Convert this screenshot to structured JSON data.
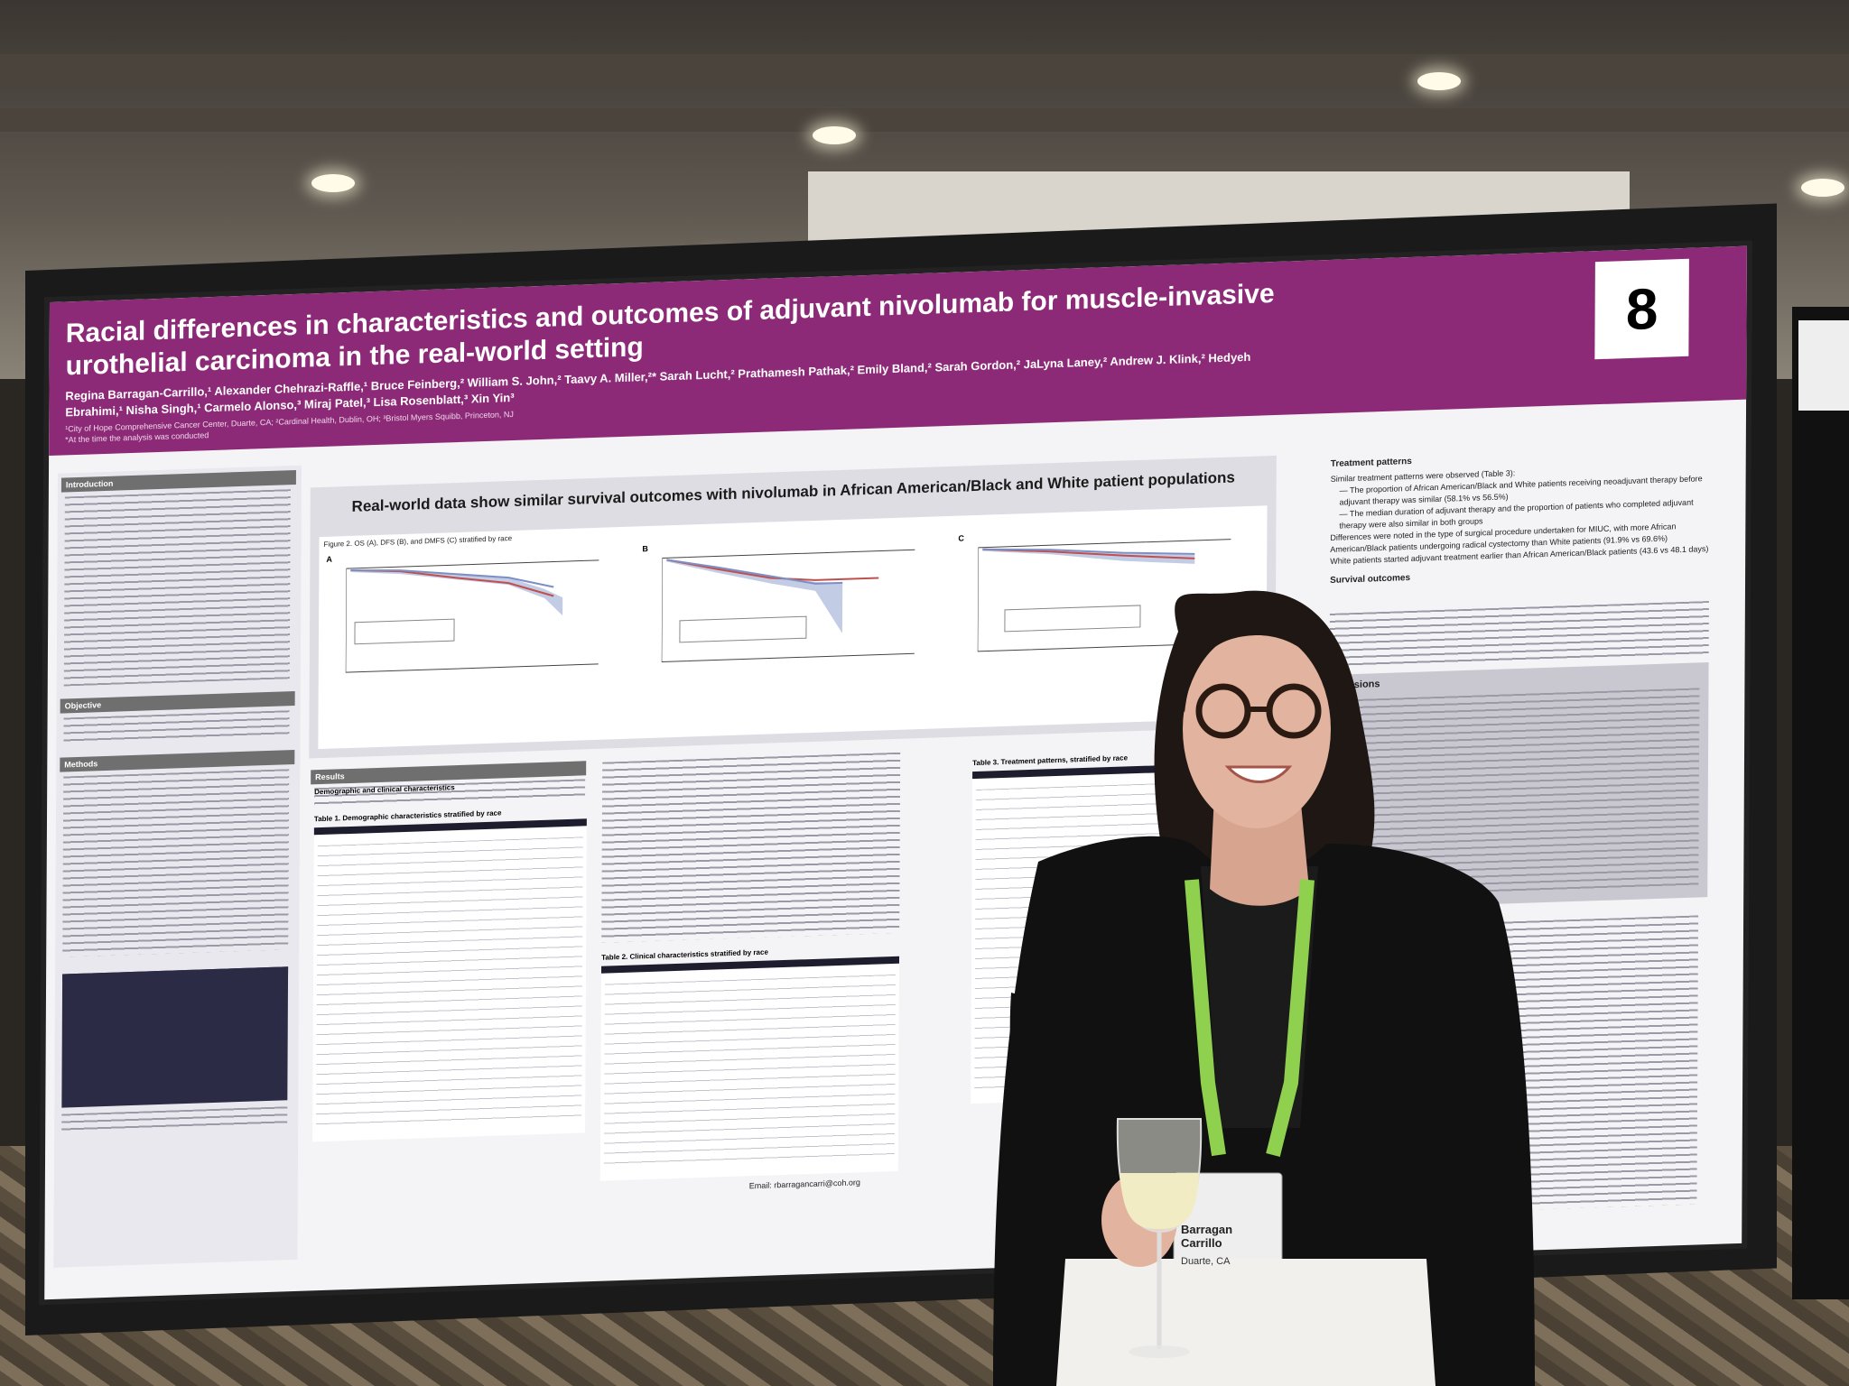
{
  "poster": {
    "number": "8",
    "title": "Racial differences in characteristics and outcomes of adjuvant nivolumab for muscle-invasive urothelial carcinoma in the real-world setting",
    "authors": "Regina Barragan-Carrillo,¹ Alexander Chehrazi-Raffle,¹ Bruce Feinberg,² William S. John,² Taavy A. Miller,²* Sarah Lucht,² Prathamesh Pathak,² Emily Bland,² Sarah Gordon,² JaLyna Laney,² Andrew J. Klink,² Hedyeh Ebrahimi,¹ Nisha Singh,¹ Carmelo Alonso,³ Miraj Patel,³ Lisa Rosenblatt,³ Xin Yin³",
    "affiliations": "¹City of Hope Comprehensive Cancer Center, Duarte, CA; ²Cardinal Health, Dublin, OH; ³Bristol Myers Squibb, Princeton, NJ",
    "affiliation_note": "*At the time the analysis was conducted",
    "headline": "Real-world data show similar survival outcomes with nivolumab in African American/Black and White patient populations",
    "figure_caption": "Figure 2. OS (A), DFS (B), and DMFS (C) stratified by race",
    "panel_letters": [
      "A",
      "B",
      "C"
    ],
    "sections": {
      "introduction": "Introduction",
      "objective": "Objective",
      "methods": "Methods",
      "results": "Results",
      "treatment_patterns": "Treatment patterns",
      "survival_outcomes": "Survival outcomes",
      "conclusions": "Conclusions"
    },
    "table1_title": "Table 1. Demographic characteristics stratified by race",
    "table2_title": "Table 2. Clinical characteristics stratified by race",
    "table3_title": "Table 3. Treatment patterns, stratified by race",
    "results_sub": "Demographic and clinical characteristics",
    "treatment_bullets": [
      "Similar treatment patterns were observed (Table 3):",
      "— The proportion of African American/Black and White patients receiving neoadjuvant therapy before adjuvant therapy was similar (58.1% vs 56.5%)",
      "— The median duration of adjuvant therapy and the proportion of patients who completed adjuvant therapy were also similar in both groups",
      "Differences were noted in the type of surgical procedure undertaken for MIUC, with more African American/Black patients undergoing radical cystectomy than White patients (91.9% vs 69.6%)",
      "White patients started adjuvant treatment earlier than African American/Black patients (43.6 vs 48.1 days)"
    ],
    "email": "Email: rbarragancarri@coh.org"
  },
  "colors": {
    "banner": "#8d2a78",
    "poster_bg": "#f4f3f6",
    "lanyard": "#8fd14f",
    "blazer": "#111111",
    "km_blue": "#7d8fc4",
    "km_red": "#c0504d"
  },
  "badge": {
    "name": "Barragan Carrillo",
    "location": "Duarte, CA"
  }
}
